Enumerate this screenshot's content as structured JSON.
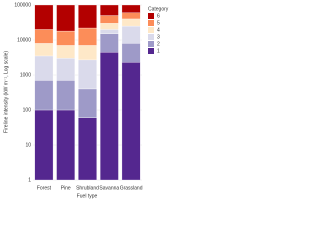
{
  "chart_data": {
    "type": "bar",
    "stacked": true,
    "log_scale": true,
    "x_label": "Fuel type",
    "y_label": "Fireline intensity (kW m⁻¹, Log scale)",
    "legend_title": "Category",
    "legend": "right",
    "categories": [
      "Forest",
      "Pine",
      "Shrubland",
      "Savanna",
      "Grassland"
    ],
    "series": [
      {
        "name": "1",
        "color": "#54278f",
        "values": [
          100,
          100,
          60,
          4500,
          2300
        ]
      },
      {
        "name": "2",
        "color": "#9e9ac8",
        "values": [
          600,
          600,
          340,
          10500,
          5700
        ]
      },
      {
        "name": "3",
        "color": "#dadaeb",
        "values": [
          2800,
          2300,
          2300,
          5000,
          17000
        ]
      },
      {
        "name": "4",
        "color": "#fee8c8",
        "values": [
          4500,
          4000,
          4300,
          10000,
          15000
        ]
      },
      {
        "name": "5",
        "color": "#fc8d59",
        "values": [
          12000,
          11000,
          15000,
          20000,
          20000
        ]
      },
      {
        "name": "6",
        "color": "#b30000",
        "values": [
          80000,
          82000,
          78000,
          50000,
          40000
        ]
      }
    ],
    "ylim": [
      1,
      100000
    ],
    "yticks": [
      1,
      10,
      100,
      1000,
      10000,
      100000
    ],
    "grid": true
  }
}
